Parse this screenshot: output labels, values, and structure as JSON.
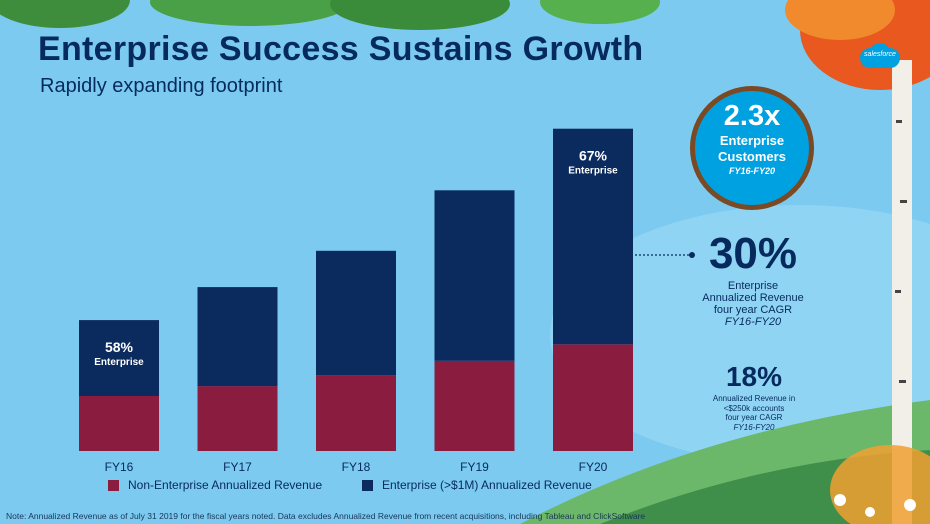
{
  "title": "Enterprise Success Sustains Growth",
  "subtitle": "Rapidly expanding footprint",
  "logo_text": "salesforce",
  "colors": {
    "enterprise": "#0b2b5e",
    "non_enterprise": "#8a1c3f",
    "accent": "#00a1e0"
  },
  "badge": {
    "value": "2.3x",
    "label": "Enterprise Customers",
    "period": "FY16-FY20"
  },
  "stat_enterprise_cagr": {
    "value": "30%",
    "line1": "Enterprise",
    "line2": "Annualized Revenue",
    "line3": "four year CAGR",
    "period": "FY16-FY20"
  },
  "stat_small_cagr": {
    "value": "18%",
    "line1": "Annualized Revenue in",
    "line2": "<$250k accounts",
    "line3": "four year CAGR",
    "period": "FY16-FY20"
  },
  "legend": {
    "non_enterprise": "Non-Enterprise Annualized Revenue",
    "enterprise": "Enterprise (>$1M) Annualized Revenue"
  },
  "note": "Note: Annualized Revenue as of July 31 2019  for the fiscal years noted. Data excludes Annualized Revenue from recent acquisitions, including Tableau and ClickSoftware",
  "chart_data": {
    "type": "bar",
    "stacked": true,
    "title": "",
    "categories": [
      "FY16",
      "FY17",
      "FY18",
      "FY19",
      "FY20"
    ],
    "series": [
      {
        "name": "Non-Enterprise Annualized Revenue",
        "values": [
          50,
          59,
          69,
          82,
          97
        ]
      },
      {
        "name": "Enterprise (>$1M) Annualized Revenue",
        "values": [
          69,
          90,
          113,
          155,
          196
        ]
      }
    ],
    "annotations": [
      {
        "category": "FY16",
        "percent": "58%",
        "label": "Enterprise"
      },
      {
        "category": "FY20",
        "percent": "67%",
        "label": "Enterprise"
      }
    ],
    "ylim": [
      0,
      300
    ],
    "grid": false,
    "legend_position": "bottom"
  }
}
